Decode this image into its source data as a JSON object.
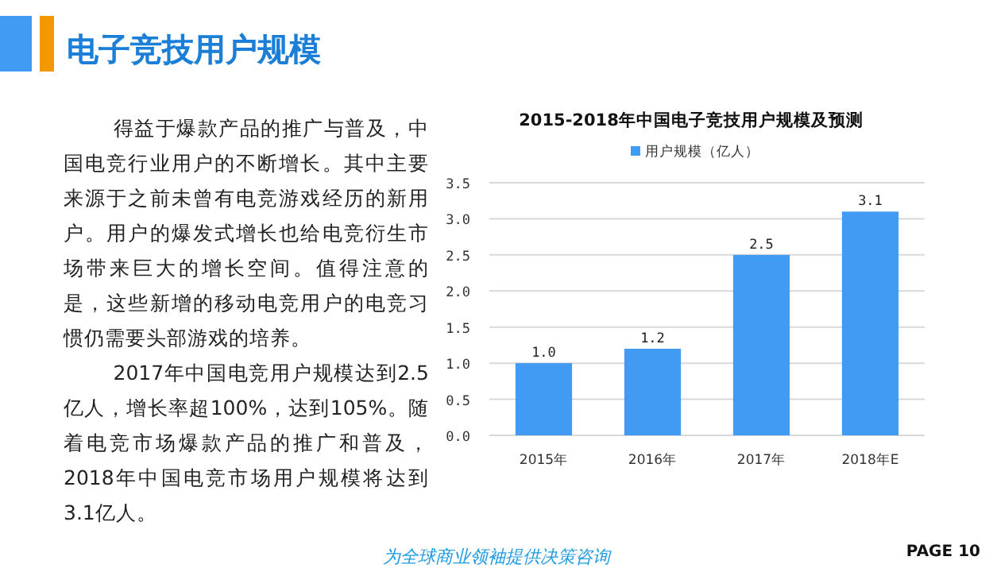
{
  "chart_data": {
    "type": "bar",
    "title": "2015-2018年中国电子竞技用户规模及预测",
    "categories": [
      "2015年",
      "2016年",
      "2017年",
      "2018年E"
    ],
    "series": [
      {
        "name": "用户规模（亿人）",
        "color": "#419bf3",
        "values": [
          1.0,
          1.2,
          2.5,
          3.1
        ]
      }
    ],
    "value_labels": [
      "1.0",
      "1.2",
      "2.5",
      "3.1"
    ],
    "ylim": [
      0,
      3.5
    ],
    "yticks": [
      {
        "value": 0,
        "label": "0.0"
      },
      {
        "value": 0.5,
        "label": "0.5"
      },
      {
        "value": 1,
        "label": "1.0"
      },
      {
        "value": 1.5,
        "label": "1.5"
      },
      {
        "value": 2,
        "label": "2.0"
      },
      {
        "value": 2.5,
        "label": "2.5"
      },
      {
        "value": 3,
        "label": "3.0"
      },
      {
        "value": 3.5,
        "label": "3.5"
      }
    ],
    "grid": "y",
    "legend": "top",
    "annotations": [
      "电子竞技用户规模",
      "得益于爆款产品的推广与普及，中国电竞行业用户的不断增长。其中主要来源于之前未曾有电竞游戏经历的新用户。用户的爆发式增长也给电竞衍生市场带来巨大的增长空间。值得注意的是，这些新增的移动电竞用户的电竞习惯仍需要头部游戏的培养。",
      "2017年中国电竞用户规模达到2.5亿人，增长率超100%，达到105%。随着电竞市场爆款产品的推广和普及，2018年中国电竞市场用户规模将达到3.1亿人。",
      "为全球商业领袖提供决策咨询",
      "PAGE 10"
    ]
  }
}
